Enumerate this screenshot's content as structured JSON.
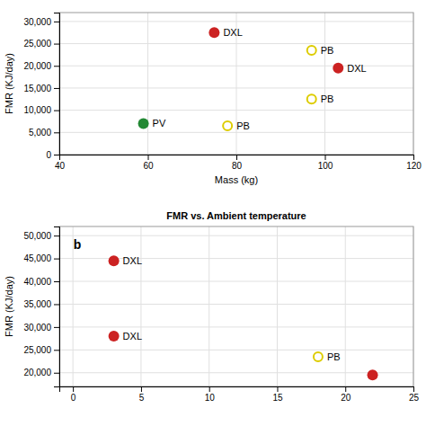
{
  "chart_data": [
    {
      "type": "scatter",
      "xlabel": "Mass (kg)",
      "ylabel": "FMR (KJ/day)",
      "grid": true,
      "xlim": [
        40,
        120
      ],
      "ylim": [
        0,
        32000
      ],
      "xticks": [
        40,
        60,
        80,
        100,
        120
      ],
      "yticks": [
        0,
        {
          "value": 5000,
          "label": "5,000"
        },
        {
          "value": 10000,
          "label": "10,000"
        },
        {
          "value": 15000,
          "label": "15,000"
        },
        {
          "value": 20000,
          "label": "20,000"
        },
        {
          "value": 25000,
          "label": "25,000"
        },
        {
          "value": 30000,
          "label": "30,000"
        }
      ],
      "series": [
        {
          "color": "#cc2222",
          "marker": "circle",
          "x": [
            75,
            103
          ],
          "values": [
            27500,
            19500
          ],
          "labels": [
            "DXL",
            "DXL"
          ]
        },
        {
          "color": "#ddcc00",
          "marker": "open-circle",
          "x": [
            97,
            97,
            78
          ],
          "values": [
            23500,
            12500,
            6500
          ],
          "labels": [
            "PB",
            "PB",
            "PB"
          ]
        },
        {
          "color": "#228833",
          "marker": "circle",
          "x": [
            59
          ],
          "values": [
            7000
          ],
          "labels": [
            "PV"
          ]
        }
      ]
    },
    {
      "type": "scatter",
      "title": "FMR vs. Ambient temperature",
      "annotation": "b",
      "ylabel": "FMR (KJ/day)",
      "grid": true,
      "xlim": [
        -1,
        25
      ],
      "ylim": [
        17000,
        52000
      ],
      "xticks": [
        0,
        5,
        10,
        15,
        20,
        25
      ],
      "yticks": [
        {
          "value": 20000,
          "label": "20,000"
        },
        {
          "value": 25000,
          "label": "25,000"
        },
        {
          "value": 30000,
          "label": "30,000"
        },
        {
          "value": 35000,
          "label": "35,000"
        },
        {
          "value": 40000,
          "label": "40,000"
        },
        {
          "value": 45000,
          "label": "45,000"
        },
        {
          "value": 50000,
          "label": "50,000"
        }
      ],
      "series": [
        {
          "color": "#cc2222",
          "marker": "circle",
          "x": [
            3,
            3,
            22
          ],
          "values": [
            44500,
            28000,
            19500
          ],
          "labels": [
            "DXL",
            "DXL",
            null
          ]
        },
        {
          "color": "#ddcc00",
          "marker": "open-circle",
          "x": [
            18
          ],
          "values": [
            23500
          ],
          "labels": [
            "PB"
          ]
        }
      ]
    }
  ]
}
